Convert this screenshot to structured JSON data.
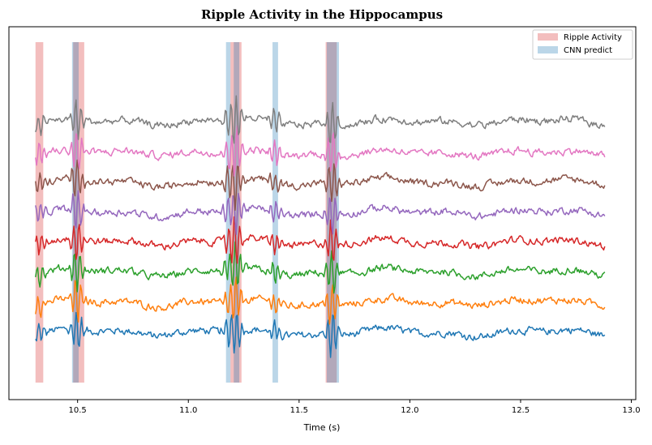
{
  "chart_data": {
    "type": "line",
    "title": "Ripple Activity in the Hippocampus",
    "xlabel": "Time (s)",
    "ylabel": "",
    "xlim": [
      10.19,
      13.02
    ],
    "x_ticks": [
      10.5,
      11.0,
      11.5,
      12.0,
      12.5,
      13.0
    ],
    "x_tick_labels": [
      "10.5",
      "11.0",
      "11.5",
      "12.0",
      "12.5",
      "13.0"
    ],
    "y_ticks_visible": false,
    "grid": false,
    "legend_position": "top-right",
    "legend": [
      {
        "label": "Ripple Activity",
        "color": "#d62728",
        "opacity": 0.3
      },
      {
        "label": "CNN predict",
        "color": "#1f77b4",
        "opacity": 0.3
      }
    ],
    "trace_time_range": [
      10.31,
      12.88
    ],
    "traces": [
      {
        "color": "#1f77b4",
        "baseline": 0.0
      },
      {
        "color": "#ff7f0e",
        "baseline": 1.0
      },
      {
        "color": "#2ca02c",
        "baseline": 2.0
      },
      {
        "color": "#d62728",
        "baseline": 3.0
      },
      {
        "color": "#9467bd",
        "baseline": 4.0
      },
      {
        "color": "#8c564b",
        "baseline": 5.0
      },
      {
        "color": "#e377c2",
        "baseline": 6.0
      },
      {
        "color": "#7f7f7f",
        "baseline": 7.0
      }
    ],
    "ripple_activity_intervals": [
      [
        10.31,
        10.345
      ],
      [
        10.48,
        10.53
      ],
      [
        11.19,
        11.24
      ],
      [
        11.62,
        11.67
      ]
    ],
    "cnn_predict_intervals": [
      [
        10.475,
        10.505
      ],
      [
        11.17,
        11.19
      ],
      [
        11.205,
        11.23
      ],
      [
        11.38,
        11.405
      ],
      [
        11.625,
        11.68
      ]
    ]
  }
}
